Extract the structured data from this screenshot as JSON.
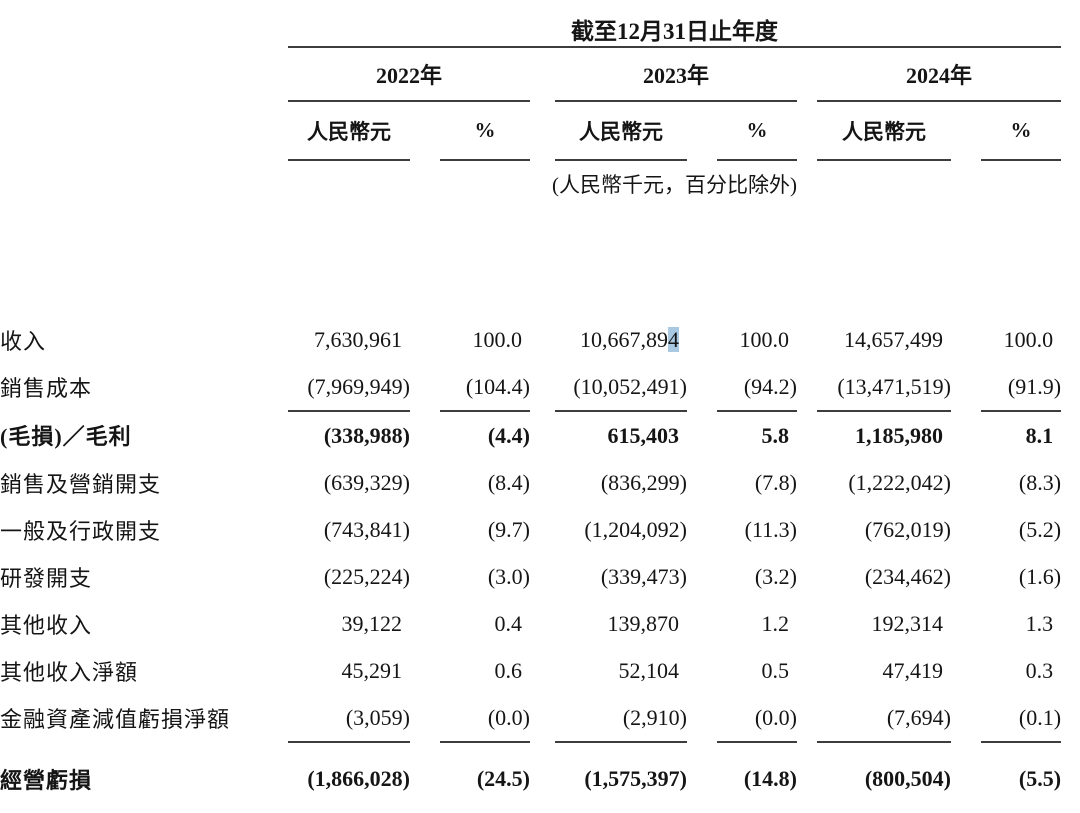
{
  "table": {
    "title": "截至12月31日止年度",
    "years": [
      "2022年",
      "2023年",
      "2024年"
    ],
    "currency_header": "人民幣元",
    "percent_header": "%",
    "unit_note": "(人民幣千元，百分比除外)",
    "rule_color": "#3d3d3d",
    "selection_highlight_color": "#a9c9e3",
    "rows": [
      {
        "label": "收入",
        "bold": false,
        "rule_below": false,
        "cells": [
          "7,630,961",
          "100.0",
          "10,667,894",
          "100.0",
          "14,657,499",
          "100.0"
        ]
      },
      {
        "label": "銷售成本",
        "bold": false,
        "rule_below": true,
        "cells": [
          "(7,969,949)",
          "(104.4)",
          "(10,052,491)",
          "(94.2)",
          "(13,471,519)",
          "(91.9)"
        ]
      },
      {
        "label": "(毛損)／毛利",
        "bold": true,
        "rule_below": false,
        "cells": [
          "(338,988)",
          "(4.4)",
          "615,403",
          "5.8",
          "1,185,980",
          "8.1"
        ]
      },
      {
        "label": "銷售及營銷開支",
        "bold": false,
        "rule_below": false,
        "cells": [
          "(639,329)",
          "(8.4)",
          "(836,299)",
          "(7.8)",
          "(1,222,042)",
          "(8.3)"
        ]
      },
      {
        "label": "一般及行政開支",
        "bold": false,
        "rule_below": false,
        "cells": [
          "(743,841)",
          "(9.7)",
          "(1,204,092)",
          "(11.3)",
          "(762,019)",
          "(5.2)"
        ]
      },
      {
        "label": "研發開支",
        "bold": false,
        "rule_below": false,
        "cells": [
          "(225,224)",
          "(3.0)",
          "(339,473)",
          "(3.2)",
          "(234,462)",
          "(1.6)"
        ]
      },
      {
        "label": "其他收入",
        "bold": false,
        "rule_below": false,
        "cells": [
          "39,122",
          "0.4",
          "139,870",
          "1.2",
          "192,314",
          "1.3"
        ]
      },
      {
        "label": "其他收入淨額",
        "bold": false,
        "rule_below": false,
        "cells": [
          "45,291",
          "0.6",
          "52,104",
          "0.5",
          "47,419",
          "0.3"
        ]
      },
      {
        "label": "金融資產減值虧損淨額",
        "bold": false,
        "rule_below": true,
        "cells": [
          "(3,059)",
          "(0.0)",
          "(2,910)",
          "(0.0)",
          "(7,694)",
          "(0.1)"
        ]
      },
      {
        "label": "經營虧損",
        "bold": true,
        "rule_below": false,
        "cells": [
          "(1,866,028)",
          "(24.5)",
          "(1,575,397)",
          "(14.8)",
          "(800,504)",
          "(5.5)"
        ]
      }
    ],
    "text_selection": {
      "row_index": 0,
      "cell_index": 2,
      "selected_suffix": "4"
    }
  }
}
